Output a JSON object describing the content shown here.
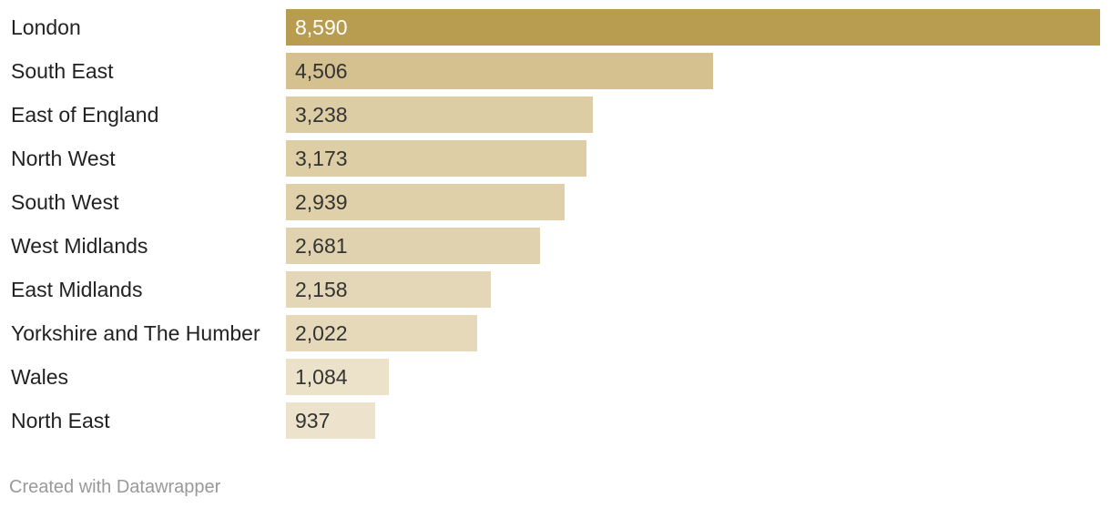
{
  "chart_data": {
    "type": "bar",
    "orientation": "horizontal",
    "categories": [
      "London",
      "South East",
      "East of England",
      "North West",
      "South West",
      "West Midlands",
      "East Midlands",
      "Yorkshire and The Humber",
      "Wales",
      "North East"
    ],
    "values": [
      8590,
      4506,
      3238,
      3173,
      2939,
      2681,
      2158,
      2022,
      1084,
      937
    ],
    "value_labels": [
      "8,590",
      "4,506",
      "3,238",
      "3,173",
      "2,939",
      "2,681",
      "2,158",
      "2,022",
      "1,084",
      "937"
    ],
    "xlim": [
      0,
      8590
    ],
    "grid": false,
    "legend": "none",
    "colors": {
      "highlight": "#b89c50",
      "bar_dark": "#d4c18f",
      "bar_light": "#ede3cd"
    }
  },
  "footer": {
    "credit": "Created with Datawrapper"
  }
}
